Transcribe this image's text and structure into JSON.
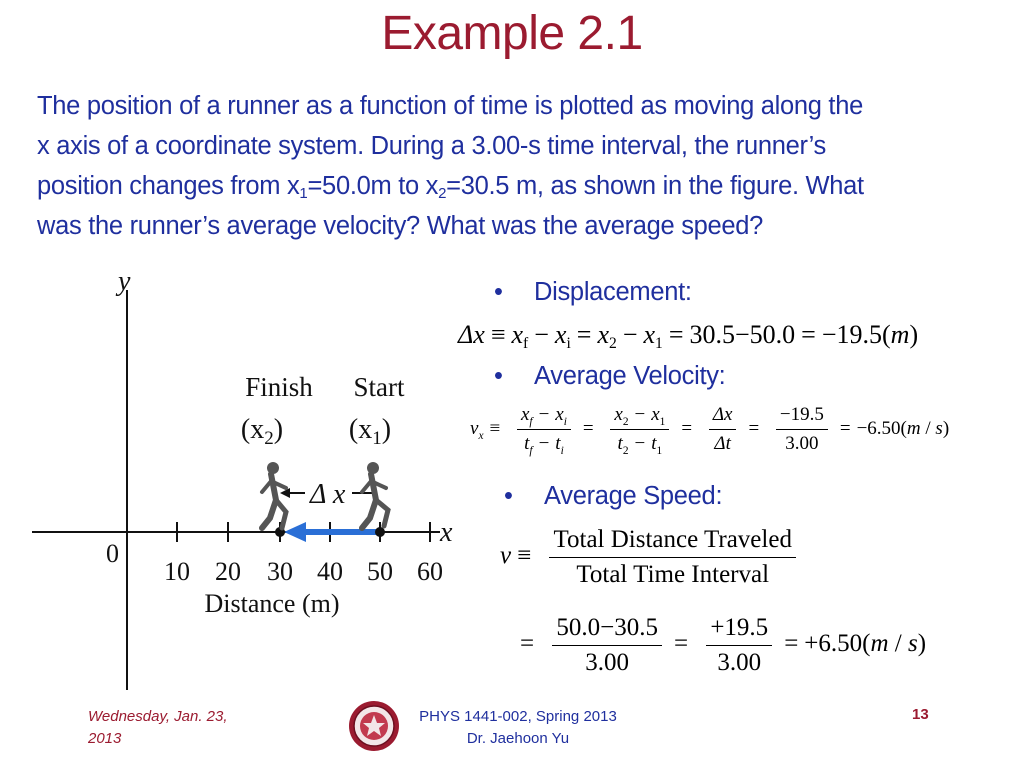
{
  "slide": {
    "title": "Example 2.1",
    "problem_lines": [
      {
        "text": "The position of a runner as a function of time is plotted as moving along the"
      },
      {
        "text": "x axis of a coordinate system.  During a 3.00-s time interval, the runner’s"
      },
      {
        "pre": "position changes from x",
        "sub1": "1",
        "mid": "=50.0m to x",
        "sub2": "2",
        "post": "=30.5 m, as shown in the figure.  What"
      },
      {
        "text": "was the runner’s average velocity?  What was the average speed?"
      }
    ]
  },
  "figure": {
    "y_label": "y",
    "x_label": "x",
    "origin_label": "0",
    "ticks": [
      "10",
      "20",
      "30",
      "40",
      "50",
      "60"
    ],
    "axis_title": "Distance (m)",
    "finish_label": "Finish",
    "finish_sub": "(x",
    "finish_sub_index": "2",
    "start_label": "Start",
    "start_sub": "(x",
    "start_sub_index": "1",
    "delta_label": "Δ x",
    "close_paren": ")",
    "arrow_color": "#2a6fd6"
  },
  "solution": {
    "displacement_label": "Displacement:",
    "displacement": {
      "delta_x": "Δx",
      "equiv": "≡",
      "xf": "x",
      "f": "f",
      "minus": "−",
      "xi": "x",
      "i": "i",
      "eq": "=",
      "x2": "x",
      "two": "2",
      "x1": "x",
      "one": "1",
      "numeric": "30.5−50.0",
      "result": "−19.5(",
      "unit": "m",
      "close": ")"
    },
    "velocity_label": "Average Velocity:",
    "velocity": {
      "v": "v",
      "x_sub": "x",
      "equiv": "≡",
      "f1_num_a": "x",
      "f1_num_a_sub": "f",
      "f1_num_b": "x",
      "f1_num_b_sub": "i",
      "f1_den_a": "t",
      "f1_den_a_sub": "f",
      "f1_den_b": "t",
      "f1_den_b_sub": "i",
      "f2_num_a": "x",
      "f2_num_a_sub": "2",
      "f2_num_b": "x",
      "f2_num_b_sub": "1",
      "f2_den_a": "t",
      "f2_den_a_sub": "2",
      "f2_den_b": "t",
      "f2_den_b_sub": "1",
      "f3_num": "Δx",
      "f3_den": "Δt",
      "f4_num": "−19.5",
      "f4_den": "3.00",
      "minus": "−",
      "eq": "=",
      "result": "−6.50(",
      "unit_m": "m",
      "slash": " / ",
      "unit_s": "s",
      "close": ")"
    },
    "speed_label": "Average Speed:",
    "speed": {
      "v": "v",
      "equiv": "≡",
      "num_text": "Total Distance Traveled",
      "den_text": "Total Time Interval",
      "eq": "=",
      "f2_num": "50.0−30.5",
      "f2_den": "3.00",
      "f3_num": "+19.5",
      "f3_den": "3.00",
      "result": "+6.50(",
      "unit_m": "m",
      "slash": " / ",
      "unit_s": "s",
      "close": ")"
    }
  },
  "footer": {
    "date": "Wednesday, Jan. 23, 2013",
    "course": "PHYS 1441-002, Spring 2013",
    "instructor": "Dr. Jaehoon Yu",
    "page": "13"
  },
  "colors": {
    "title": "#9b1b30",
    "body_text": "#1f2f9e",
    "seal": "#9b1b30"
  }
}
